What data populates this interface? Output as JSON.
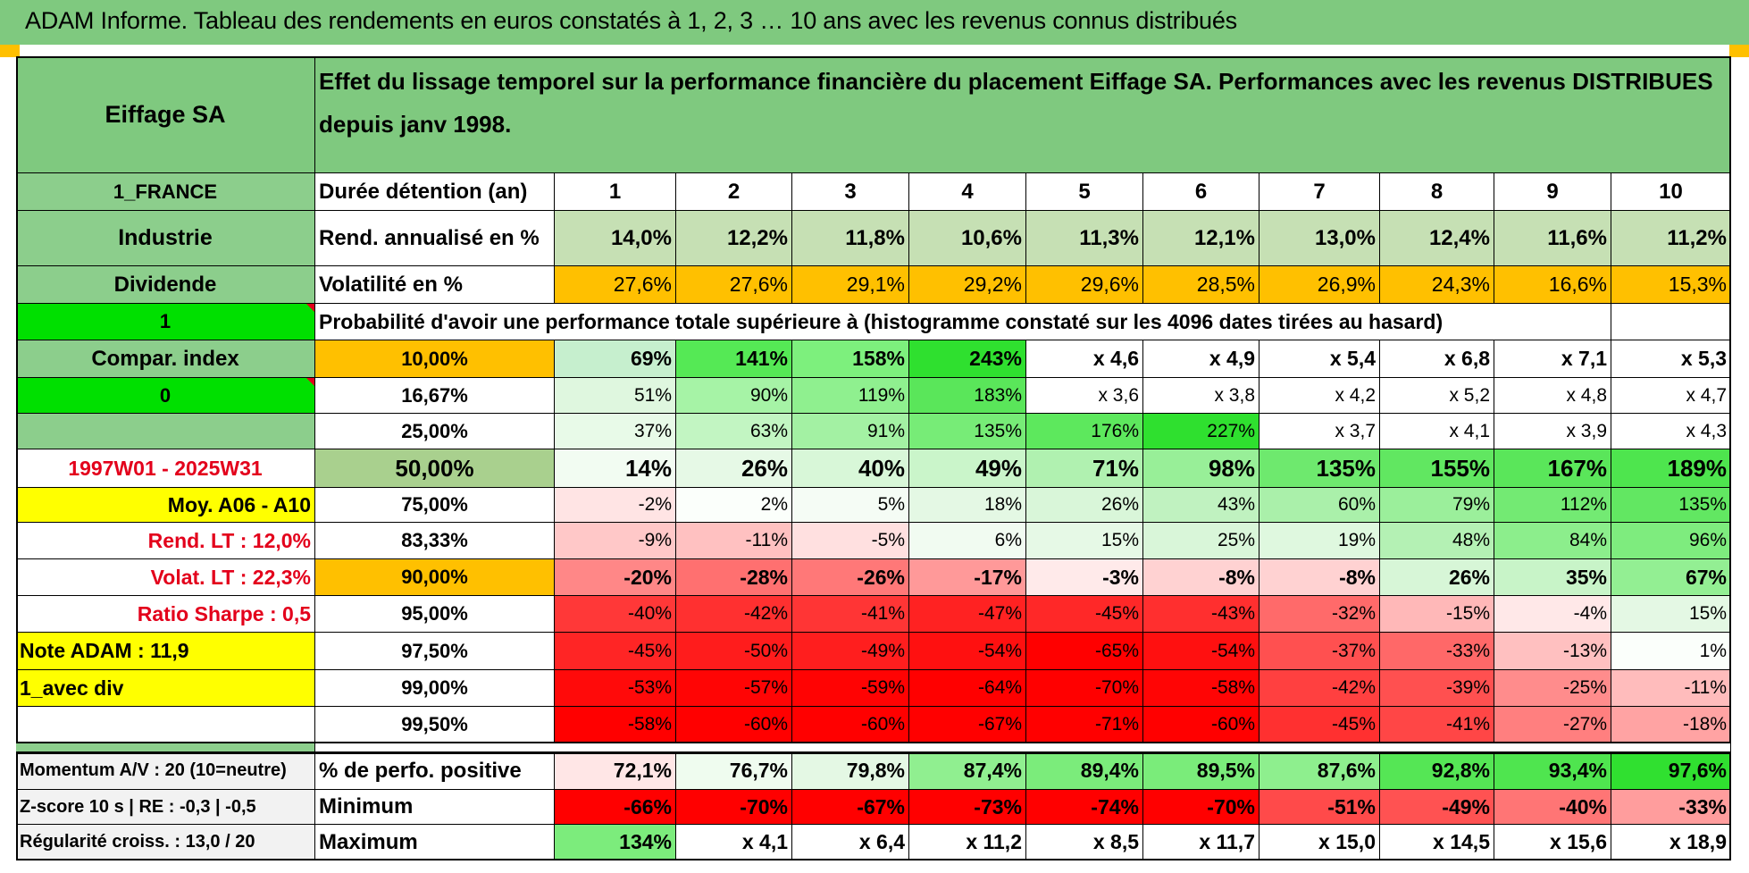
{
  "title": "ADAM Informe. Tableau des rendements en euros constatés à 1, 2, 3 … 10 ans avec les revenus connus distribués",
  "left": {
    "company": "Eiffage SA",
    "country": "1_FRANCE",
    "sector": "Industrie",
    "dividend": "Dividende",
    "flag1": "1",
    "compar_index": "Compar. index",
    "flag0": "0",
    "period": "1997W01 - 2025W31",
    "moy": "Moy. A06 - A10",
    "rend_lt": "Rend. LT :    12,0%",
    "volat_lt": "Volat. LT :    22,3%",
    "sharpe": "Ratio Sharpe :     0,5",
    "note": "Note ADAM : 11,9",
    "avec_div": "1_avec div",
    "momentum": "Momentum A/V : 20 (10=neutre)",
    "zscore": "Z-score 10 s | RE : -0,3 | -0,5",
    "regularite": "Régularité croiss. : 13,0 / 20"
  },
  "header_text": "Effet du lissage temporel sur la performance financière du placement Eiffage SA. Performances avec les revenus DISTRIBUES depuis janv 1998.",
  "labels": {
    "duree": "Durée détention (an)",
    "rend": "Rend. annualisé en %",
    "vol": "Volatilité en %",
    "prob": "Probabilité d'avoir une performance totale supérieure à (histogramme constaté sur les 4096 dates tirées au hasard)",
    "pct_pos": "% de perfo. positive",
    "minimum": "Minimum",
    "maximum": "Maximum"
  },
  "years": [
    "1",
    "2",
    "3",
    "4",
    "5",
    "6",
    "7",
    "8",
    "9",
    "10"
  ],
  "rend": [
    "14,0%",
    "12,2%",
    "11,8%",
    "10,6%",
    "11,3%",
    "12,1%",
    "13,0%",
    "12,4%",
    "11,6%",
    "11,2%"
  ],
  "vol": [
    "27,6%",
    "27,6%",
    "29,1%",
    "29,2%",
    "29,6%",
    "28,5%",
    "26,9%",
    "24,3%",
    "16,6%",
    "15,3%"
  ],
  "prob_rows": [
    {
      "p": "10,00%",
      "vals": [
        "69%",
        "141%",
        "158%",
        "243%",
        "x 4,6",
        "x 4,9",
        "x 5,4",
        "x 6,8",
        "x 7,1",
        "x 5,3"
      ]
    },
    {
      "p": "16,67%",
      "vals": [
        "51%",
        "90%",
        "119%",
        "183%",
        "x 3,6",
        "x 3,8",
        "x 4,2",
        "x 5,2",
        "x 4,8",
        "x 4,7"
      ]
    },
    {
      "p": "25,00%",
      "vals": [
        "37%",
        "63%",
        "91%",
        "135%",
        "176%",
        "227%",
        "x 3,7",
        "x 4,1",
        "x 3,9",
        "x 4,3"
      ]
    },
    {
      "p": "50,00%",
      "vals": [
        "14%",
        "26%",
        "40%",
        "49%",
        "71%",
        "98%",
        "135%",
        "155%",
        "167%",
        "189%"
      ]
    },
    {
      "p": "75,00%",
      "vals": [
        "-2%",
        "2%",
        "5%",
        "18%",
        "26%",
        "43%",
        "60%",
        "79%",
        "112%",
        "135%"
      ]
    },
    {
      "p": "83,33%",
      "vals": [
        "-9%",
        "-11%",
        "-5%",
        "6%",
        "15%",
        "25%",
        "19%",
        "48%",
        "84%",
        "96%"
      ]
    },
    {
      "p": "90,00%",
      "vals": [
        "-20%",
        "-28%",
        "-26%",
        "-17%",
        "-3%",
        "-8%",
        "-8%",
        "26%",
        "35%",
        "67%"
      ]
    },
    {
      "p": "95,00%",
      "vals": [
        "-40%",
        "-42%",
        "-41%",
        "-47%",
        "-45%",
        "-43%",
        "-32%",
        "-15%",
        "-4%",
        "15%"
      ]
    },
    {
      "p": "97,50%",
      "vals": [
        "-45%",
        "-50%",
        "-49%",
        "-54%",
        "-65%",
        "-54%",
        "-37%",
        "-33%",
        "-13%",
        "1%"
      ]
    },
    {
      "p": "99,00%",
      "vals": [
        "-53%",
        "-57%",
        "-59%",
        "-64%",
        "-70%",
        "-58%",
        "-42%",
        "-39%",
        "-25%",
        "-11%"
      ]
    },
    {
      "p": "99,50%",
      "vals": [
        "-58%",
        "-60%",
        "-60%",
        "-67%",
        "-71%",
        "-60%",
        "-45%",
        "-41%",
        "-27%",
        "-18%"
      ]
    }
  ],
  "pct_pos": [
    "72,1%",
    "76,7%",
    "79,8%",
    "87,4%",
    "89,4%",
    "89,5%",
    "87,6%",
    "92,8%",
    "93,4%",
    "97,6%"
  ],
  "minimum": [
    "-66%",
    "-70%",
    "-67%",
    "-73%",
    "-74%",
    "-70%",
    "-51%",
    "-49%",
    "-40%",
    "-33%"
  ],
  "maximum": [
    "134%",
    "x 4,1",
    "x 6,4",
    "x 11,2",
    "x 8,5",
    "x 11,7",
    "x 15,0",
    "x 14,5",
    "x 15,6",
    "x 18,9"
  ],
  "colors": {
    "header_green": "#7fc97f",
    "left_green": "#8cce8c",
    "bright_green": "#00e000",
    "yellow": "#ffff00",
    "orange": "#ffc000",
    "olive_green": "#a9d08e",
    "pale_green": "#c6e0b4",
    "red": "#e3001b"
  },
  "prob_colors": [
    [
      "#c6efce",
      "#55e955",
      "#7df07d",
      "#2fe02f",
      "#ffffff",
      "#ffffff",
      "#ffffff",
      "#ffffff",
      "#ffffff",
      "#ffffff"
    ],
    [
      "#dff7df",
      "#a6f3a6",
      "#8ff08f",
      "#5ae65a",
      "#ffffff",
      "#ffffff",
      "#ffffff",
      "#ffffff",
      "#ffffff",
      "#ffffff"
    ],
    [
      "#e8fae8",
      "#c2f5c2",
      "#a3f1a3",
      "#77ec77",
      "#5de85d",
      "#2fe02f",
      "#ffffff",
      "#ffffff",
      "#ffffff",
      "#ffffff"
    ],
    [
      "#f2fcf2",
      "#e6f9e6",
      "#d8f7d8",
      "#caf5ca",
      "#b0f1b0",
      "#98ef98",
      "#6ee96e",
      "#61e761",
      "#5ae65a",
      "#4ee54e"
    ],
    [
      "#ffe4e4",
      "#fbfffb",
      "#f5fcf5",
      "#e4f8e4",
      "#d9f6d9",
      "#c0f2c0",
      "#aaf0aa",
      "#9bef9b",
      "#73ea73",
      "#62e762"
    ],
    [
      "#ffc8c8",
      "#ffc1c1",
      "#ffe0e0",
      "#f1fbf1",
      "#e6f9e6",
      "#d9f6d9",
      "#dff8df",
      "#b4f1b4",
      "#8cee8c",
      "#7eec7e"
    ],
    [
      "#ff8787",
      "#ff7070",
      "#ff7878",
      "#ff9999",
      "#ffeaea",
      "#ffd2d2",
      "#ffd2d2",
      "#d7f6d7",
      "#c8f4c8",
      "#93ef93"
    ],
    [
      "#ff3838",
      "#ff3030",
      "#ff3535",
      "#ff2222",
      "#ff2828",
      "#ff2f2f",
      "#ff6a6a",
      "#ffb8b8",
      "#ffe8e8",
      "#e4f8e4"
    ],
    [
      "#ff2525",
      "#ff1c1c",
      "#ff1e1e",
      "#ff1010",
      "#ff0000",
      "#ff1010",
      "#ff5050",
      "#ff6868",
      "#ffc0c0",
      "#fbfffb"
    ],
    [
      "#ff0a0a",
      "#ff0505",
      "#ff0303",
      "#ff0000",
      "#ff0000",
      "#ff0505",
      "#ff4040",
      "#ff5050",
      "#ff8c8c",
      "#ffbcbc"
    ],
    [
      "#ff0000",
      "#ff0000",
      "#ff0000",
      "#ff0000",
      "#ff0000",
      "#ff0000",
      "#ff3030",
      "#ff4646",
      "#ff7f7f",
      "#ffa3a3"
    ]
  ],
  "pct_pos_colors": [
    "#ffe6e6",
    "#effcef",
    "#e4f8e4",
    "#90ef90",
    "#7bec7b",
    "#7aec7a",
    "#8eef8e",
    "#55e655",
    "#4fe54f",
    "#30e030"
  ],
  "minimum_colors": [
    "#ff0000",
    "#ff0000",
    "#ff0000",
    "#ff0000",
    "#ff0000",
    "#ff0000",
    "#ff4a4a",
    "#ff5252",
    "#ff7575",
    "#ff9d9d"
  ],
  "maximum_colors": [
    "#7cec7c",
    "#ffffff",
    "#ffffff",
    "#ffffff",
    "#ffffff",
    "#ffffff",
    "#ffffff",
    "#ffffff",
    "#ffffff",
    "#ffffff"
  ]
}
